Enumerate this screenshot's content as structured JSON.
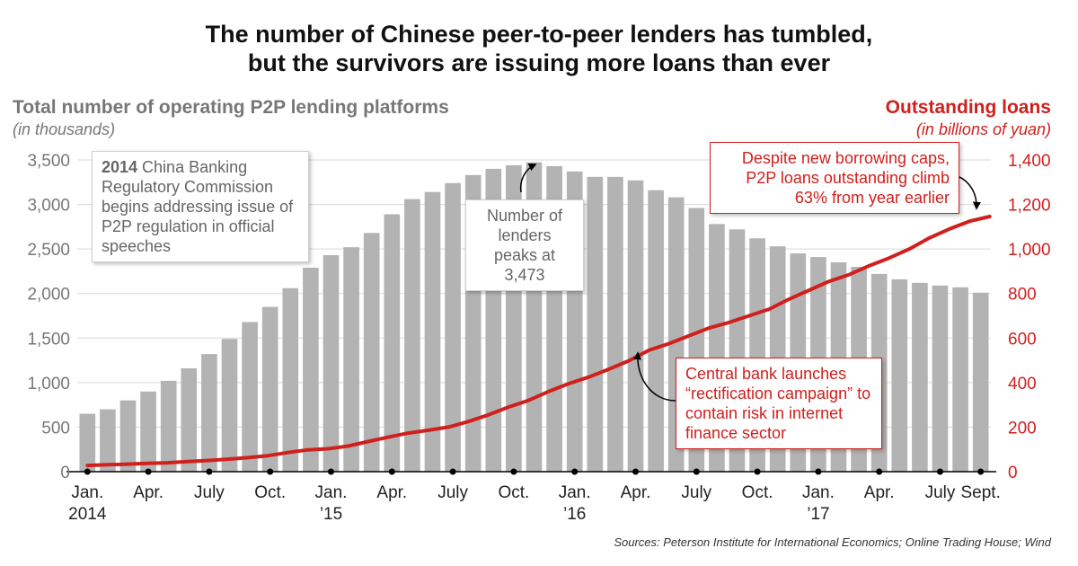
{
  "title_line1": "The number of Chinese peer-to-peer lenders has tumbled,",
  "title_line2": "but the survivors are issuing more loans than ever",
  "source": "Sources: Peterson Institute for International Economics; Online Trading House; Wind",
  "colors": {
    "bars": "#b3b3b3",
    "line": "#d0201d",
    "left_axis": "#777777",
    "right_axis": "#d0201d"
  },
  "chart_data": {
    "type": "bar+line",
    "left_axis": {
      "title": "Total number of operating P2P lending platforms",
      "subtitle": "(in thousands)",
      "range": [
        0,
        3500
      ],
      "ticks": [
        "0",
        "500",
        "1,000",
        "1,500",
        "2,000",
        "2,500",
        "3,000",
        "3,500"
      ],
      "tick_values": [
        0,
        500,
        1000,
        1500,
        2000,
        2500,
        3000,
        3500
      ]
    },
    "right_axis": {
      "title": "Outstanding loans",
      "subtitle": "(in billions of yuan)",
      "range": [
        0,
        1400
      ],
      "ticks": [
        "0",
        "200",
        "400",
        "600",
        "800",
        "1,000",
        "1,200",
        "1,400"
      ],
      "tick_values": [
        0,
        200,
        400,
        600,
        800,
        1000,
        1200,
        1400
      ]
    },
    "x_labels": [
      {
        "index": 0,
        "line1": "Jan.",
        "line2": "2014"
      },
      {
        "index": 3,
        "line1": "Apr.",
        "line2": ""
      },
      {
        "index": 6,
        "line1": "July",
        "line2": ""
      },
      {
        "index": 9,
        "line1": "Oct.",
        "line2": ""
      },
      {
        "index": 12,
        "line1": "Jan.",
        "line2": "’15"
      },
      {
        "index": 15,
        "line1": "Apr.",
        "line2": ""
      },
      {
        "index": 18,
        "line1": "July",
        "line2": ""
      },
      {
        "index": 21,
        "line1": "Oct.",
        "line2": ""
      },
      {
        "index": 24,
        "line1": "Jan.",
        "line2": "’16"
      },
      {
        "index": 27,
        "line1": "Apr.",
        "line2": ""
      },
      {
        "index": 30,
        "line1": "July",
        "line2": ""
      },
      {
        "index": 33,
        "line1": "Oct.",
        "line2": ""
      },
      {
        "index": 36,
        "line1": "Jan.",
        "line2": "’17"
      },
      {
        "index": 39,
        "line1": "Apr.",
        "line2": ""
      },
      {
        "index": 42,
        "line1": "July",
        "line2": ""
      },
      {
        "index": 44,
        "line1": "Sept.",
        "line2": ""
      }
    ],
    "series": [
      {
        "type": "bar",
        "axis": "left",
        "values": [
          650,
          700,
          800,
          900,
          1020,
          1160,
          1320,
          1490,
          1680,
          1850,
          2060,
          2290,
          2430,
          2520,
          2680,
          2890,
          3060,
          3140,
          3240,
          3330,
          3400,
          3440,
          3473,
          3430,
          3370,
          3310,
          3310,
          3270,
          3160,
          3080,
          2960,
          2780,
          2720,
          2620,
          2530,
          2450,
          2410,
          2350,
          2300,
          2220,
          2160,
          2120,
          2090,
          2070,
          2010
        ]
      },
      {
        "type": "line",
        "axis": "right",
        "values": [
          28,
          31,
          34,
          37,
          40,
          45,
          50,
          56,
          63,
          72,
          86,
          98,
          103,
          115,
          135,
          155,
          173,
          186,
          200,
          225,
          255,
          290,
          320,
          360,
          395,
          425,
          460,
          498,
          545,
          575,
          610,
          645,
          670,
          700,
          730,
          775,
          815,
          855,
          885,
          925,
          960,
          1000,
          1050,
          1090,
          1125,
          1146
        ]
      }
    ],
    "annotations": {
      "a2014_year": "2014",
      "a2014_rest": " China Banking Regulatory Commission begins addressing issue of P2P regulation in official speeches",
      "peak": "Number of lenders peaks at 3,473",
      "central_bank": "Central bank launches “rectification campaign” to contain risk in internet finance sector",
      "despite": "Despite new borrowing caps, P2P loans outstanding climb 63% from year earlier"
    }
  }
}
